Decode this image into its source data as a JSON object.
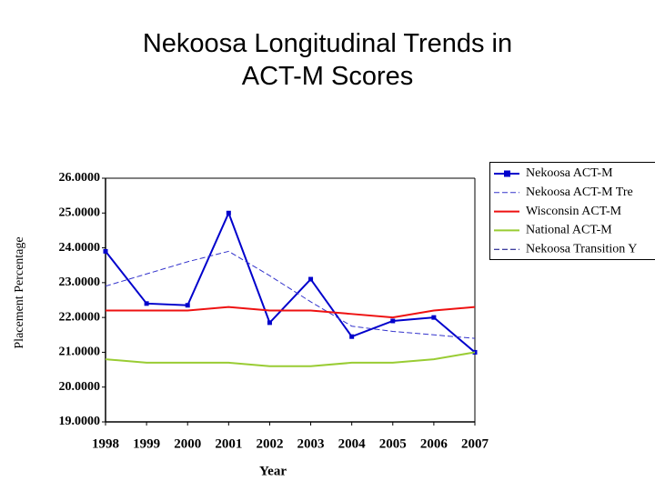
{
  "chart_data": {
    "type": "line",
    "title": "Nekoosa Longitudinal Trends in\nACT-M Scores",
    "xlabel": "Year",
    "ylabel": "Placement Percentage",
    "categories": [
      "1998",
      "1999",
      "2000",
      "2001",
      "2002",
      "2003",
      "2004",
      "2005",
      "2006",
      "2007"
    ],
    "series": [
      {
        "name": "Nekoosa ACT-M",
        "color": "#0000cc",
        "marker": "square",
        "dash": false,
        "values": [
          23.9,
          22.4,
          22.35,
          25.0,
          21.85,
          23.1,
          21.45,
          21.9,
          22.0,
          21.0
        ]
      },
      {
        "name": "Nekoosa ACT-M Tre",
        "color": "#3333cc",
        "marker": "none",
        "dash": true,
        "values": [
          22.9,
          23.25,
          23.6,
          23.9,
          23.2,
          22.45,
          21.75,
          21.6,
          21.5,
          21.4
        ]
      },
      {
        "name": "Wisconsin ACT-M",
        "color": "#ee1111",
        "marker": "none",
        "dash": false,
        "values": [
          22.2,
          22.2,
          22.2,
          22.3,
          22.2,
          22.2,
          22.1,
          22.0,
          22.2,
          22.3
        ]
      },
      {
        "name": "National ACT-M",
        "color": "#99cc33",
        "marker": "none",
        "dash": false,
        "values": [
          20.8,
          20.7,
          20.7,
          20.7,
          20.6,
          20.6,
          20.7,
          20.7,
          20.8,
          21.0
        ]
      },
      {
        "name": "Nekoosa Transition Y",
        "color": "#000080",
        "marker": "none",
        "dash": true,
        "values": [
          null,
          null,
          null,
          null,
          null,
          null,
          null,
          null,
          null,
          null
        ]
      }
    ],
    "ylim": [
      19,
      26
    ],
    "yticks": [
      {
        "value": 19,
        "label": "19.0000"
      },
      {
        "value": 20,
        "label": "20.0000"
      },
      {
        "value": 21,
        "label": "21.0000"
      },
      {
        "value": 22,
        "label": "22.0000"
      },
      {
        "value": 23,
        "label": "23.0000"
      },
      {
        "value": 24,
        "label": "24.0000"
      },
      {
        "value": 25,
        "label": "25.0000"
      },
      {
        "value": 26,
        "label": "26.0000"
      }
    ],
    "grid": false,
    "legend": "right"
  }
}
